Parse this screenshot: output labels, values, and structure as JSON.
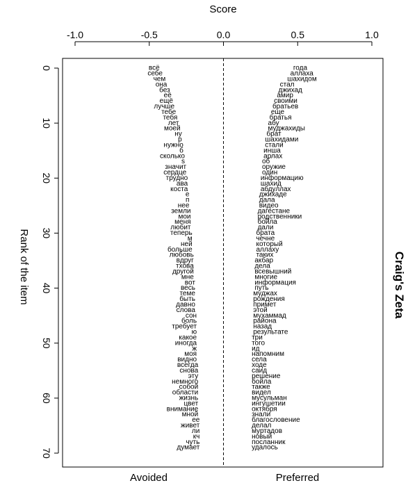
{
  "chart_data": {
    "type": "scatter",
    "title": "",
    "side_title": "Craig's Zeta",
    "xlabel": "Score",
    "ylabel": "Rank of the item",
    "xlim": [
      -1.0,
      1.0
    ],
    "ylim": [
      72,
      -2
    ],
    "x_ticks": [
      -1.0,
      -0.5,
      0.0,
      0.5,
      1.0
    ],
    "x_tick_labels": [
      "-1.0",
      "-0.5",
      "0.0",
      "0.5",
      "1.0"
    ],
    "y_ticks": [
      0,
      10,
      20,
      30,
      40,
      50,
      60,
      70
    ],
    "y_tick_labels": [
      "0",
      "10",
      "20",
      "30",
      "40",
      "50",
      "60",
      "70"
    ],
    "bottom_labels": {
      "left": "Avoided",
      "right": "Preferred"
    },
    "reference_line": {
      "x": 0.0,
      "style": "dashed"
    },
    "grid": false,
    "series": [
      {
        "name": "Avoided",
        "points": [
          {
            "rank": 0,
            "score": -0.43,
            "word": "всё"
          },
          {
            "rank": 1,
            "score": -0.41,
            "word": "себе"
          },
          {
            "rank": 2,
            "score": -0.39,
            "word": "чем"
          },
          {
            "rank": 3,
            "score": -0.38,
            "word": "она"
          },
          {
            "rank": 4,
            "score": -0.36,
            "word": "без"
          },
          {
            "rank": 5,
            "score": -0.35,
            "word": "её"
          },
          {
            "rank": 6,
            "score": -0.34,
            "word": "ещё"
          },
          {
            "rank": 7,
            "score": -0.33,
            "word": "лучше"
          },
          {
            "rank": 8,
            "score": -0.32,
            "word": "тебе"
          },
          {
            "rank": 9,
            "score": -0.31,
            "word": "тебя"
          },
          {
            "rank": 10,
            "score": -0.3,
            "word": "лет"
          },
          {
            "rank": 11,
            "score": -0.29,
            "word": "моей"
          },
          {
            "rank": 12,
            "score": -0.28,
            "word": "ну"
          },
          {
            "rank": 13,
            "score": -0.28,
            "word": "р"
          },
          {
            "rank": 14,
            "score": -0.27,
            "word": "нужно"
          },
          {
            "rank": 15,
            "score": -0.27,
            "word": "б"
          },
          {
            "rank": 16,
            "score": -0.26,
            "word": "сколько"
          },
          {
            "rank": 17,
            "score": -0.26,
            "word": "s"
          },
          {
            "rank": 18,
            "score": -0.25,
            "word": "значит"
          },
          {
            "rank": 19,
            "score": -0.25,
            "word": "сердце"
          },
          {
            "rank": 20,
            "score": -0.24,
            "word": "трудно"
          },
          {
            "rank": 21,
            "score": -0.24,
            "word": "ава"
          },
          {
            "rank": 22,
            "score": -0.24,
            "word": "коста"
          },
          {
            "rank": 23,
            "score": -0.23,
            "word": "е"
          },
          {
            "rank": 24,
            "score": -0.23,
            "word": "п"
          },
          {
            "rank": 25,
            "score": -0.23,
            "word": "нее"
          },
          {
            "rank": 26,
            "score": -0.22,
            "word": "земли"
          },
          {
            "rank": 27,
            "score": -0.22,
            "word": "мои"
          },
          {
            "rank": 28,
            "score": -0.22,
            "word": "меня"
          },
          {
            "rank": 29,
            "score": -0.22,
            "word": "любит"
          },
          {
            "rank": 30,
            "score": -0.21,
            "word": "теперь"
          },
          {
            "rank": 31,
            "score": -0.21,
            "word": "м"
          },
          {
            "rank": 32,
            "score": -0.21,
            "word": "ней"
          },
          {
            "rank": 33,
            "score": -0.21,
            "word": "больше"
          },
          {
            "rank": 34,
            "score": -0.2,
            "word": "любовь"
          },
          {
            "rank": 35,
            "score": -0.2,
            "word": "вдруг"
          },
          {
            "rank": 36,
            "score": -0.2,
            "word": "тхова"
          },
          {
            "rank": 37,
            "score": -0.2,
            "word": "другой"
          },
          {
            "rank": 38,
            "score": -0.2,
            "word": "мне"
          },
          {
            "rank": 39,
            "score": -0.19,
            "word": "вот"
          },
          {
            "rank": 40,
            "score": -0.19,
            "word": "весь"
          },
          {
            "rank": 41,
            "score": -0.19,
            "word": "теме"
          },
          {
            "rank": 42,
            "score": -0.19,
            "word": "быть"
          },
          {
            "rank": 43,
            "score": -0.19,
            "word": "давно"
          },
          {
            "rank": 44,
            "score": -0.19,
            "word": "слова"
          },
          {
            "rank": 45,
            "score": -0.18,
            "word": "сон"
          },
          {
            "rank": 46,
            "score": -0.18,
            "word": "боль"
          },
          {
            "rank": 47,
            "score": -0.18,
            "word": "требует"
          },
          {
            "rank": 48,
            "score": -0.18,
            "word": "ю"
          },
          {
            "rank": 49,
            "score": -0.18,
            "word": "какое"
          },
          {
            "rank": 50,
            "score": -0.18,
            "word": "иногда"
          },
          {
            "rank": 51,
            "score": -0.18,
            "word": "ж"
          },
          {
            "rank": 52,
            "score": -0.18,
            "word": "моя"
          },
          {
            "rank": 53,
            "score": -0.18,
            "word": "видно"
          },
          {
            "rank": 54,
            "score": -0.17,
            "word": "всегда"
          },
          {
            "rank": 55,
            "score": -0.17,
            "word": "снова"
          },
          {
            "rank": 56,
            "score": -0.17,
            "word": "эту"
          },
          {
            "rank": 57,
            "score": -0.17,
            "word": "немного"
          },
          {
            "rank": 58,
            "score": -0.17,
            "word": "собой"
          },
          {
            "rank": 59,
            "score": -0.17,
            "word": "области"
          },
          {
            "rank": 60,
            "score": -0.17,
            "word": "жизнь"
          },
          {
            "rank": 61,
            "score": -0.17,
            "word": "цвет"
          },
          {
            "rank": 62,
            "score": -0.17,
            "word": "внимание"
          },
          {
            "rank": 63,
            "score": -0.17,
            "word": "мной"
          },
          {
            "rank": 64,
            "score": -0.16,
            "word": "ее"
          },
          {
            "rank": 65,
            "score": -0.16,
            "word": "живет"
          },
          {
            "rank": 66,
            "score": -0.16,
            "word": "ли"
          },
          {
            "rank": 67,
            "score": -0.16,
            "word": "кч"
          },
          {
            "rank": 68,
            "score": -0.16,
            "word": "чуть"
          },
          {
            "rank": 69,
            "score": -0.16,
            "word": "думает"
          }
        ]
      },
      {
        "name": "Preferred",
        "points": [
          {
            "rank": 0,
            "score": 0.47,
            "word": "года"
          },
          {
            "rank": 1,
            "score": 0.45,
            "word": "аллаха"
          },
          {
            "rank": 2,
            "score": 0.43,
            "word": "шахидом"
          },
          {
            "rank": 3,
            "score": 0.38,
            "word": "стал"
          },
          {
            "rank": 4,
            "score": 0.37,
            "word": "джихад"
          },
          {
            "rank": 5,
            "score": 0.36,
            "word": "амир"
          },
          {
            "rank": 6,
            "score": 0.34,
            "word": "своими"
          },
          {
            "rank": 7,
            "score": 0.33,
            "word": "братьев"
          },
          {
            "rank": 8,
            "score": 0.32,
            "word": "еще"
          },
          {
            "rank": 9,
            "score": 0.31,
            "word": "братья"
          },
          {
            "rank": 10,
            "score": 0.3,
            "word": "абу"
          },
          {
            "rank": 11,
            "score": 0.3,
            "word": "муджахиды"
          },
          {
            "rank": 12,
            "score": 0.29,
            "word": "брат"
          },
          {
            "rank": 13,
            "score": 0.28,
            "word": "шахидами"
          },
          {
            "rank": 14,
            "score": 0.28,
            "word": "стали"
          },
          {
            "rank": 15,
            "score": 0.27,
            "word": "инша"
          },
          {
            "rank": 16,
            "score": 0.27,
            "word": "арлах"
          },
          {
            "rank": 17,
            "score": 0.26,
            "word": "об"
          },
          {
            "rank": 18,
            "score": 0.26,
            "word": "оружие"
          },
          {
            "rank": 19,
            "score": 0.26,
            "word": "один"
          },
          {
            "rank": 20,
            "score": 0.25,
            "word": "информацию"
          },
          {
            "rank": 21,
            "score": 0.25,
            "word": "шахид"
          },
          {
            "rank": 22,
            "score": 0.25,
            "word": "абдуллах"
          },
          {
            "rank": 23,
            "score": 0.24,
            "word": "джихаде"
          },
          {
            "rank": 24,
            "score": 0.24,
            "word": "дала"
          },
          {
            "rank": 25,
            "score": 0.24,
            "word": "видео"
          },
          {
            "rank": 26,
            "score": 0.23,
            "word": "дагестане"
          },
          {
            "rank": 27,
            "score": 0.23,
            "word": "родственники"
          },
          {
            "rank": 28,
            "score": 0.23,
            "word": "бойла"
          },
          {
            "rank": 29,
            "score": 0.23,
            "word": "дали"
          },
          {
            "rank": 30,
            "score": 0.22,
            "word": "брата"
          },
          {
            "rank": 31,
            "score": 0.22,
            "word": "чечне"
          },
          {
            "rank": 32,
            "score": 0.22,
            "word": "который"
          },
          {
            "rank": 33,
            "score": 0.22,
            "word": "аллаху"
          },
          {
            "rank": 34,
            "score": 0.22,
            "word": "таких"
          },
          {
            "rank": 35,
            "score": 0.21,
            "word": "акбар"
          },
          {
            "rank": 36,
            "score": 0.21,
            "word": "дела"
          },
          {
            "rank": 37,
            "score": 0.21,
            "word": "всевышний"
          },
          {
            "rank": 38,
            "score": 0.21,
            "word": "многие"
          },
          {
            "rank": 39,
            "score": 0.21,
            "word": "информация"
          },
          {
            "rank": 40,
            "score": 0.21,
            "word": "путь"
          },
          {
            "rank": 41,
            "score": 0.2,
            "word": "муджах"
          },
          {
            "rank": 42,
            "score": 0.2,
            "word": "рождения"
          },
          {
            "rank": 43,
            "score": 0.2,
            "word": "примет"
          },
          {
            "rank": 44,
            "score": 0.2,
            "word": "этой"
          },
          {
            "rank": 45,
            "score": 0.2,
            "word": "мухаммад"
          },
          {
            "rank": 46,
            "score": 0.2,
            "word": "района"
          },
          {
            "rank": 47,
            "score": 0.2,
            "word": "назад"
          },
          {
            "rank": 48,
            "score": 0.2,
            "word": "результате"
          },
          {
            "rank": 49,
            "score": 0.19,
            "word": "три"
          },
          {
            "rank": 50,
            "score": 0.19,
            "word": "того"
          },
          {
            "rank": 51,
            "score": 0.19,
            "word": "ид"
          },
          {
            "rank": 52,
            "score": 0.19,
            "word": "напомним"
          },
          {
            "rank": 53,
            "score": 0.19,
            "word": "села"
          },
          {
            "rank": 54,
            "score": 0.19,
            "word": "ходе"
          },
          {
            "rank": 55,
            "score": 0.19,
            "word": "саид"
          },
          {
            "rank": 56,
            "score": 0.19,
            "word": "решение"
          },
          {
            "rank": 57,
            "score": 0.19,
            "word": "бойла"
          },
          {
            "rank": 58,
            "score": 0.19,
            "word": "также"
          },
          {
            "rank": 59,
            "score": 0.19,
            "word": "видел"
          },
          {
            "rank": 60,
            "score": 0.19,
            "word": "мусульман"
          },
          {
            "rank": 61,
            "score": 0.19,
            "word": "ингушетии"
          },
          {
            "rank": 62,
            "score": 0.19,
            "word": "октября"
          },
          {
            "rank": 63,
            "score": 0.19,
            "word": "знали"
          },
          {
            "rank": 64,
            "score": 0.19,
            "word": "благословение"
          },
          {
            "rank": 65,
            "score": 0.19,
            "word": "делал"
          },
          {
            "rank": 66,
            "score": 0.19,
            "word": "муртадов"
          },
          {
            "rank": 67,
            "score": 0.19,
            "word": "новый"
          },
          {
            "rank": 68,
            "score": 0.19,
            "word": "посланник"
          },
          {
            "rank": 69,
            "score": 0.19,
            "word": "удалось"
          }
        ]
      }
    ]
  }
}
